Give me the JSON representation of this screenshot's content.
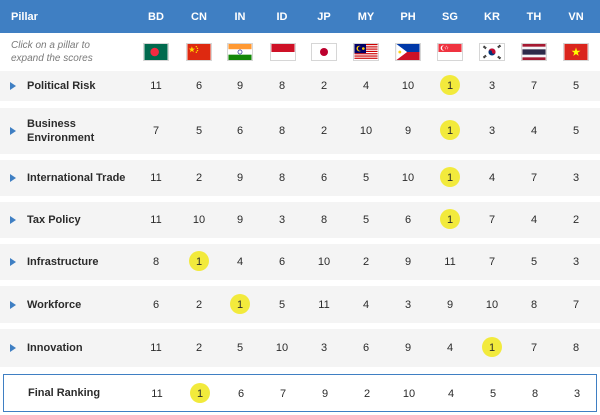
{
  "header": {
    "pillar_label": "Pillar",
    "countries": [
      "BD",
      "CN",
      "IN",
      "ID",
      "JP",
      "MY",
      "PH",
      "SG",
      "KR",
      "TH",
      "VN"
    ]
  },
  "hint": {
    "line1": "Click on a pillar to",
    "line2": "expand the scores"
  },
  "flags": [
    "bangladesh-flag",
    "china-flag",
    "india-flag",
    "indonesia-flag",
    "japan-flag",
    "malaysia-flag",
    "philippines-flag",
    "singapore-flag",
    "south-korea-flag",
    "thailand-flag",
    "vietnam-flag"
  ],
  "colors": {
    "header_blue": "#3f7fc3",
    "highlight_yellow": "#f2ea3c",
    "row_background": "#f4f4f4"
  },
  "rows": [
    {
      "label_line1": "Political Risk",
      "label_line2": "",
      "scores": [
        "11",
        "6",
        "9",
        "8",
        "2",
        "4",
        "10",
        "1",
        "3",
        "7",
        "5"
      ],
      "highlight": 7
    },
    {
      "label_line1": "Business",
      "label_line2": "Environment",
      "scores": [
        "7",
        "5",
        "6",
        "8",
        "2",
        "10",
        "9",
        "1",
        "3",
        "4",
        "5"
      ],
      "highlight": 7
    },
    {
      "label_line1": "International Trade",
      "label_line2": "",
      "scores": [
        "11",
        "2",
        "9",
        "8",
        "6",
        "5",
        "10",
        "1",
        "4",
        "7",
        "3"
      ],
      "highlight": 7
    },
    {
      "label_line1": "Tax Policy",
      "label_line2": "",
      "scores": [
        "11",
        "10",
        "9",
        "3",
        "8",
        "5",
        "6",
        "1",
        "7",
        "4",
        "2"
      ],
      "highlight": 7
    },
    {
      "label_line1": "Infrastructure",
      "label_line2": "",
      "scores": [
        "8",
        "1",
        "4",
        "6",
        "10",
        "2",
        "9",
        "11",
        "7",
        "5",
        "3"
      ],
      "highlight": 1
    },
    {
      "label_line1": "Workforce",
      "label_line2": "",
      "scores": [
        "6",
        "2",
        "1",
        "5",
        "11",
        "4",
        "3",
        "9",
        "10",
        "8",
        "7"
      ],
      "highlight": 2
    },
    {
      "label_line1": "Innovation",
      "label_line2": "",
      "scores": [
        "11",
        "2",
        "5",
        "10",
        "3",
        "6",
        "9",
        "4",
        "1",
        "7",
        "8"
      ],
      "highlight": 8
    }
  ],
  "final": {
    "label": "Final Ranking",
    "scores": [
      "11",
      "1",
      "6",
      "7",
      "9",
      "2",
      "10",
      "4",
      "5",
      "8",
      "3"
    ],
    "highlight": 1
  }
}
